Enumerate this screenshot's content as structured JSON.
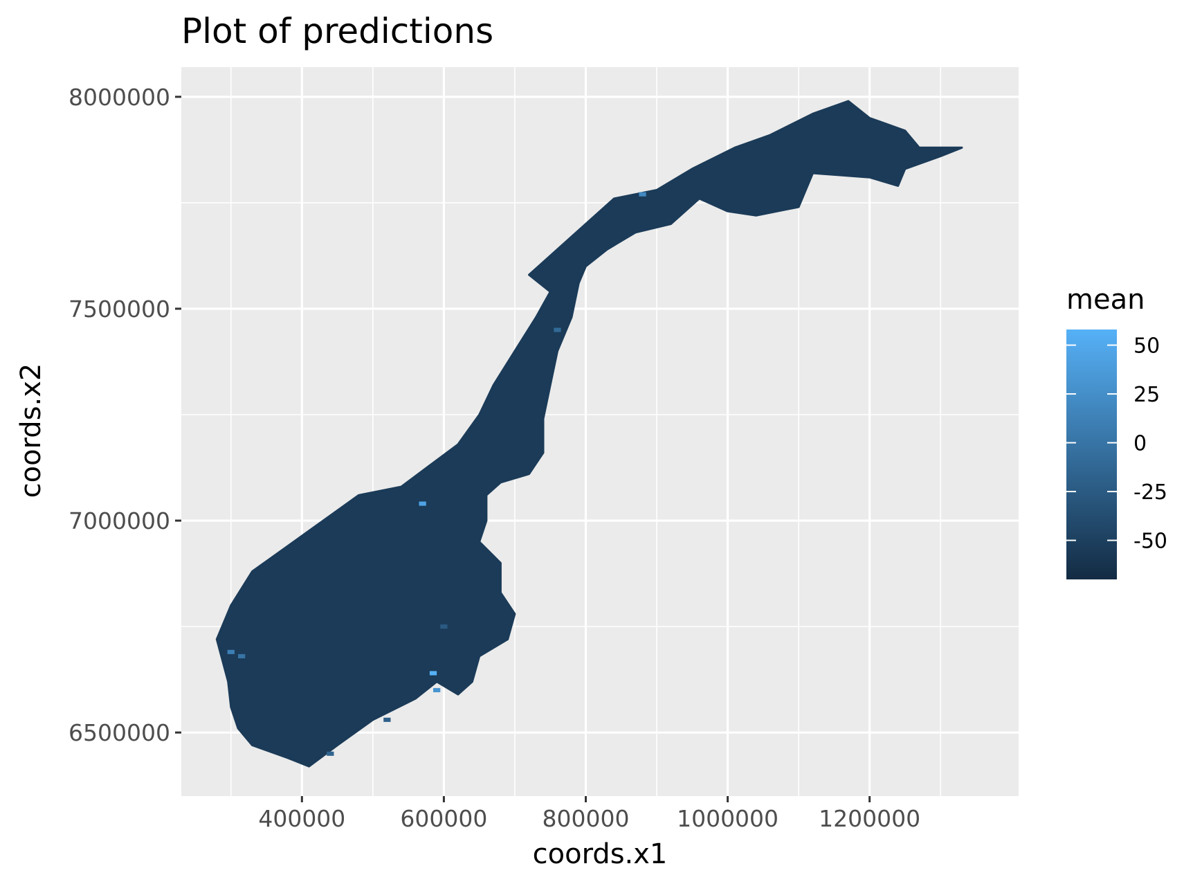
{
  "chart_data": {
    "type": "heatmap",
    "title": "Plot of predictions",
    "xlabel": "coords.x1",
    "ylabel": "coords.x2",
    "x_ticks": [
      400000,
      600000,
      800000,
      1000000,
      1200000
    ],
    "x_tick_labels": [
      "400000",
      "600000",
      "800000",
      "1000000",
      "1200000"
    ],
    "y_ticks": [
      6500000,
      7000000,
      7500000,
      8000000
    ],
    "y_tick_labels": [
      "6500000",
      "7000000",
      "7500000",
      "8000000"
    ],
    "xlim": [
      230000,
      1410000
    ],
    "ylim": [
      6350000,
      8070000
    ],
    "grid": true,
    "legend": {
      "title": "mean",
      "placement": "right",
      "range": [
        -70,
        58
      ],
      "breaks": [
        50,
        25,
        0,
        -25,
        -50
      ],
      "break_labels": [
        "50",
        "25",
        "0",
        "-25",
        "-50"
      ],
      "low_color": "#132b43",
      "high_color": "#56b1f7"
    },
    "region_outline": [
      [
        300000,
        6560000
      ],
      [
        296000,
        6620000
      ],
      [
        280000,
        6720000
      ],
      [
        300000,
        6800000
      ],
      [
        330000,
        6880000
      ],
      [
        380000,
        6940000
      ],
      [
        430000,
        7000000
      ],
      [
        480000,
        7060000
      ],
      [
        540000,
        7080000
      ],
      [
        580000,
        7130000
      ],
      [
        620000,
        7180000
      ],
      [
        650000,
        7250000
      ],
      [
        670000,
        7320000
      ],
      [
        700000,
        7400000
      ],
      [
        730000,
        7480000
      ],
      [
        750000,
        7540000
      ],
      [
        720000,
        7580000
      ],
      [
        760000,
        7640000
      ],
      [
        800000,
        7700000
      ],
      [
        840000,
        7760000
      ],
      [
        900000,
        7780000
      ],
      [
        950000,
        7830000
      ],
      [
        1010000,
        7880000
      ],
      [
        1060000,
        7910000
      ],
      [
        1120000,
        7960000
      ],
      [
        1170000,
        7990000
      ],
      [
        1200000,
        7950000
      ],
      [
        1250000,
        7920000
      ],
      [
        1270000,
        7880000
      ],
      [
        1330000,
        7880000
      ],
      [
        1300000,
        7860000
      ],
      [
        1250000,
        7830000
      ],
      [
        1240000,
        7790000
      ],
      [
        1200000,
        7810000
      ],
      [
        1120000,
        7820000
      ],
      [
        1100000,
        7740000
      ],
      [
        1040000,
        7720000
      ],
      [
        1000000,
        7730000
      ],
      [
        960000,
        7760000
      ],
      [
        920000,
        7700000
      ],
      [
        870000,
        7680000
      ],
      [
        830000,
        7640000
      ],
      [
        800000,
        7600000
      ],
      [
        790000,
        7560000
      ],
      [
        780000,
        7480000
      ],
      [
        760000,
        7400000
      ],
      [
        750000,
        7320000
      ],
      [
        740000,
        7240000
      ],
      [
        740000,
        7160000
      ],
      [
        720000,
        7110000
      ],
      [
        680000,
        7090000
      ],
      [
        660000,
        7060000
      ],
      [
        660000,
        7000000
      ],
      [
        650000,
        6950000
      ],
      [
        680000,
        6900000
      ],
      [
        680000,
        6830000
      ],
      [
        700000,
        6780000
      ],
      [
        690000,
        6720000
      ],
      [
        650000,
        6680000
      ],
      [
        640000,
        6620000
      ],
      [
        620000,
        6590000
      ],
      [
        590000,
        6620000
      ],
      [
        560000,
        6580000
      ],
      [
        500000,
        6530000
      ],
      [
        450000,
        6470000
      ],
      [
        410000,
        6420000
      ],
      [
        380000,
        6440000
      ],
      [
        330000,
        6470000
      ],
      [
        310000,
        6510000
      ]
    ],
    "highlight_cells": [
      {
        "x": 880000,
        "y": 7770000,
        "value": 20
      },
      {
        "x": 570000,
        "y": 7040000,
        "value": 45
      },
      {
        "x": 585000,
        "y": 6640000,
        "value": 58
      },
      {
        "x": 590000,
        "y": 6600000,
        "value": 30
      },
      {
        "x": 300000,
        "y": 6690000,
        "value": 10
      },
      {
        "x": 315000,
        "y": 6680000,
        "value": 0
      },
      {
        "x": 760000,
        "y": 7450000,
        "value": -10
      },
      {
        "x": 520000,
        "y": 6530000,
        "value": -20
      },
      {
        "x": 600000,
        "y": 6750000,
        "value": -25
      },
      {
        "x": 440000,
        "y": 6450000,
        "value": -15
      }
    ]
  }
}
